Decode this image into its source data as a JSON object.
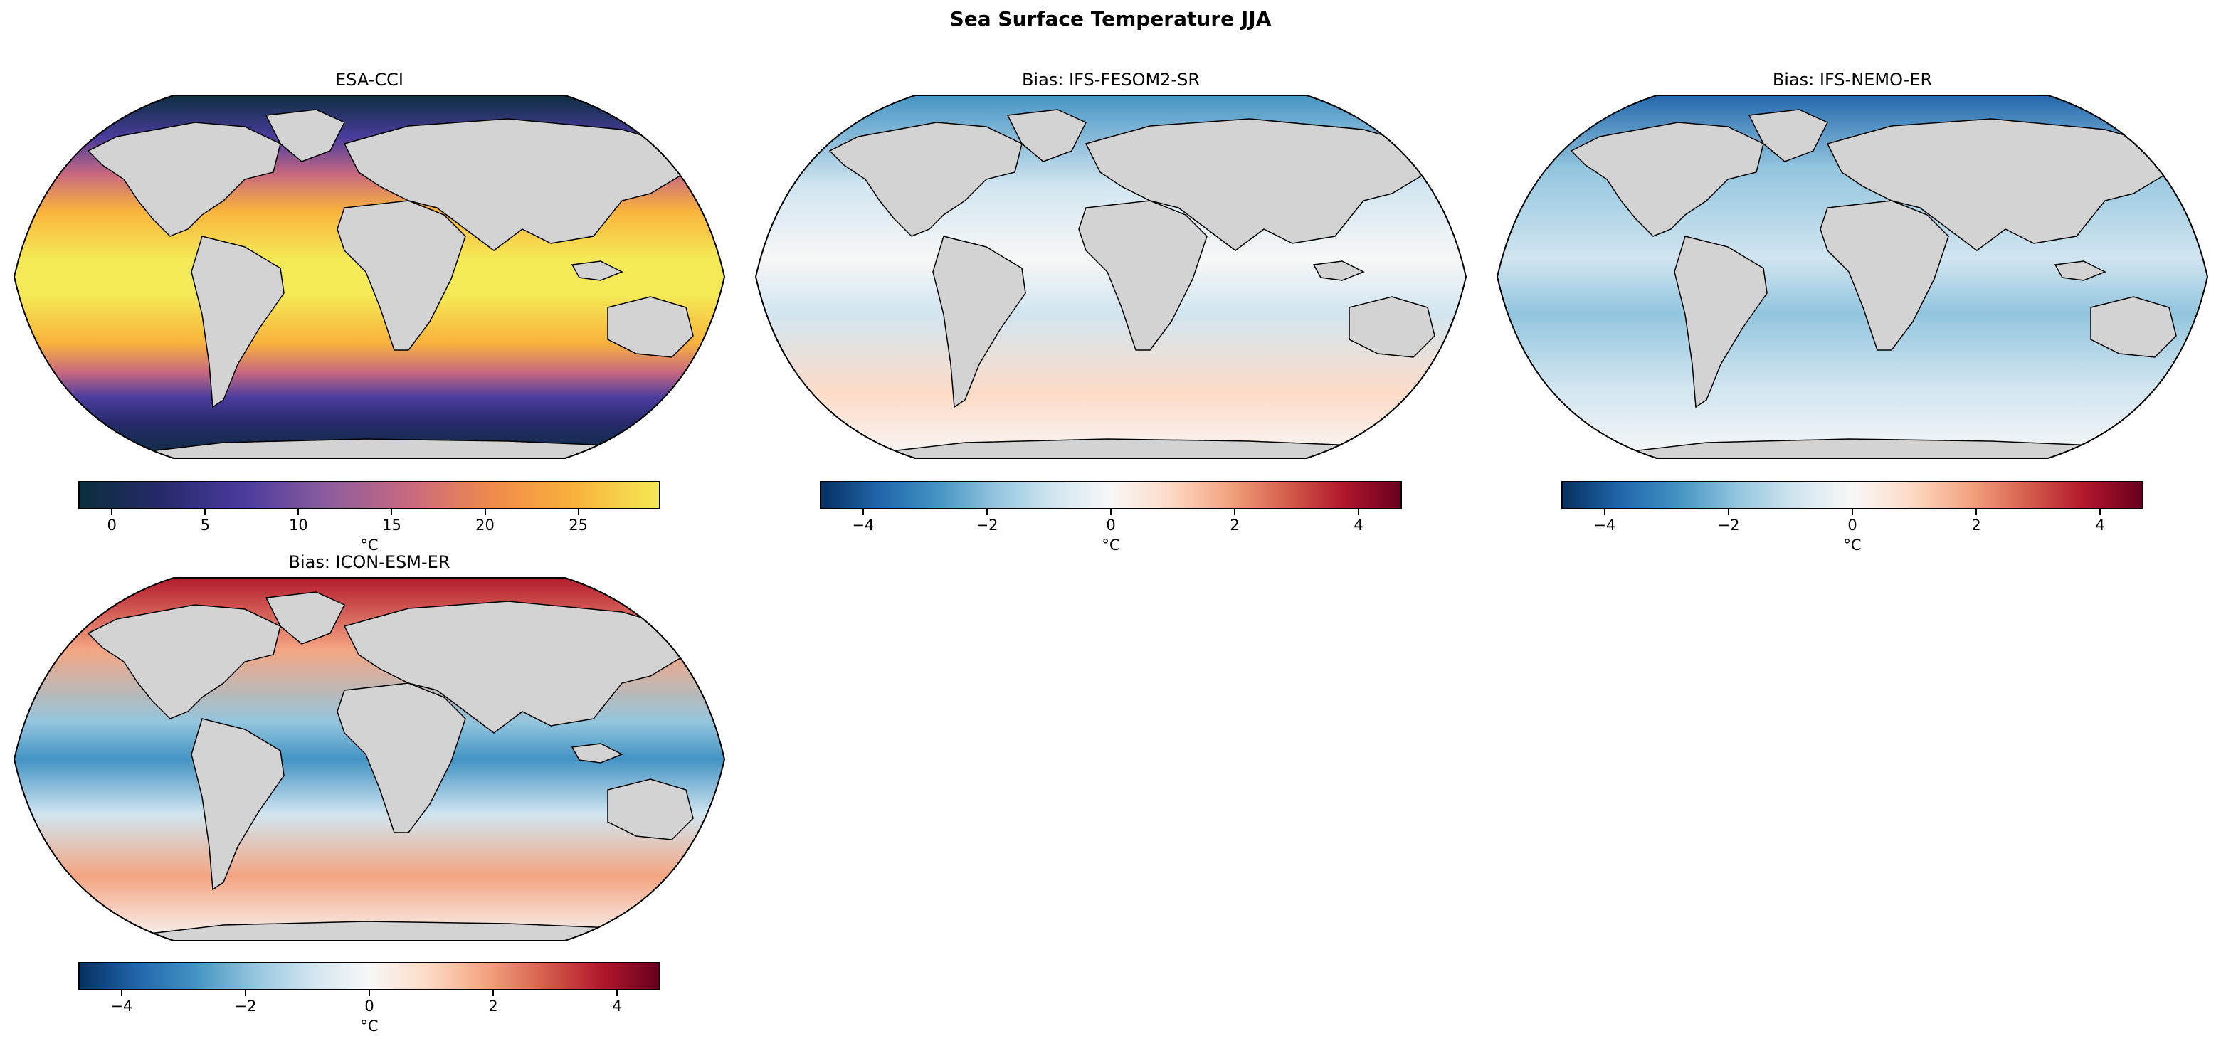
{
  "figure": {
    "title": "Sea Surface Temperature JJA"
  },
  "colors": {
    "land": "#d3d3d3",
    "coast": "#000000",
    "sst_cmap": [
      "#0b2e3d",
      "#262a6b",
      "#4b3c9e",
      "#8d5d9d",
      "#c9697f",
      "#f08b4b",
      "#f9b33c",
      "#f4e956"
    ],
    "bias_cmap": [
      "#053061",
      "#2166ac",
      "#4393c3",
      "#92c5de",
      "#d1e5f0",
      "#f7f7f7",
      "#fddbc7",
      "#f4a582",
      "#d6604d",
      "#b2182b",
      "#67001f"
    ]
  },
  "panels": [
    {
      "title": "ESA-CCI",
      "kind": "absolute",
      "colorbar": {
        "ticks": [
          "0",
          "5",
          "10",
          "15",
          "20",
          "25"
        ],
        "range": [
          -1.8,
          29.4
        ],
        "unit": "°C"
      }
    },
    {
      "title": "Bias: IFS-FESOM2-SR",
      "kind": "bias",
      "colorbar": {
        "ticks": [
          "−4",
          "−2",
          "0",
          "2",
          "4"
        ],
        "range": [
          -4.7,
          4.7
        ],
        "unit": "°C"
      }
    },
    {
      "title": "Bias: IFS-NEMO-ER",
      "kind": "bias",
      "colorbar": {
        "ticks": [
          "−4",
          "−2",
          "0",
          "2",
          "4"
        ],
        "range": [
          -4.7,
          4.7
        ],
        "unit": "°C"
      }
    },
    {
      "title": "Bias: ICON-ESM-ER",
      "kind": "bias",
      "colorbar": {
        "ticks": [
          "−4",
          "−2",
          "0",
          "2",
          "4"
        ],
        "range": [
          -4.7,
          4.7
        ],
        "unit": "°C"
      }
    }
  ]
}
